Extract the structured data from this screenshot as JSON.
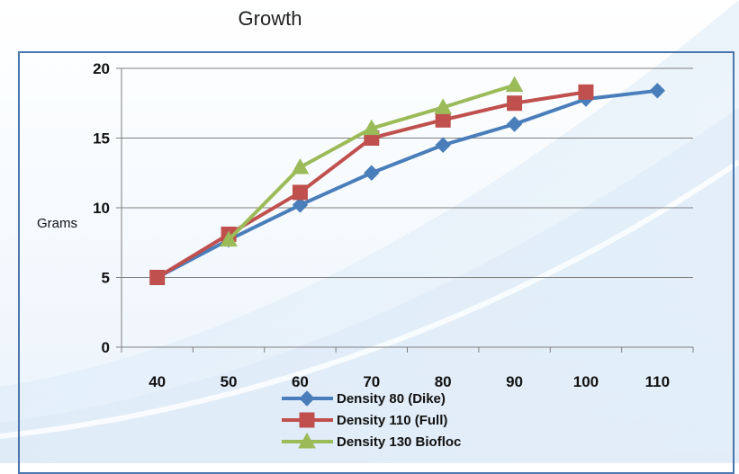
{
  "chart_data": {
    "type": "line",
    "title": "Growth",
    "ylabel": "Grams",
    "xlabel": "",
    "x": [
      40,
      50,
      60,
      70,
      80,
      90,
      100,
      110
    ],
    "x_ticks": [
      "40",
      "50",
      "60",
      "70",
      "80",
      "90",
      "100",
      "110"
    ],
    "ylim": [
      0,
      20
    ],
    "y_ticks": [
      0,
      5,
      10,
      15,
      20
    ],
    "grid": "horizontal",
    "legend_position": "bottom",
    "series": [
      {
        "name": "Density 80 (Dike)",
        "color": "#4a7ebb",
        "marker": "diamond",
        "x": [
          40,
          50,
          60,
          70,
          80,
          90,
          100,
          110
        ],
        "values": [
          5.0,
          7.7,
          10.2,
          12.5,
          14.5,
          16.0,
          17.8,
          18.4
        ]
      },
      {
        "name": "Density 110 (Full)",
        "color": "#c0504d",
        "marker": "square",
        "x": [
          40,
          50,
          60,
          70,
          80,
          90,
          100
        ],
        "values": [
          5.0,
          8.1,
          11.1,
          15.0,
          16.3,
          17.5,
          18.3
        ]
      },
      {
        "name": "Density 130 Biofloc",
        "color": "#9bbb59",
        "marker": "triangle",
        "x": [
          50,
          60,
          70,
          80,
          90
        ],
        "values": [
          7.7,
          12.9,
          15.7,
          17.2,
          18.8
        ]
      }
    ]
  }
}
